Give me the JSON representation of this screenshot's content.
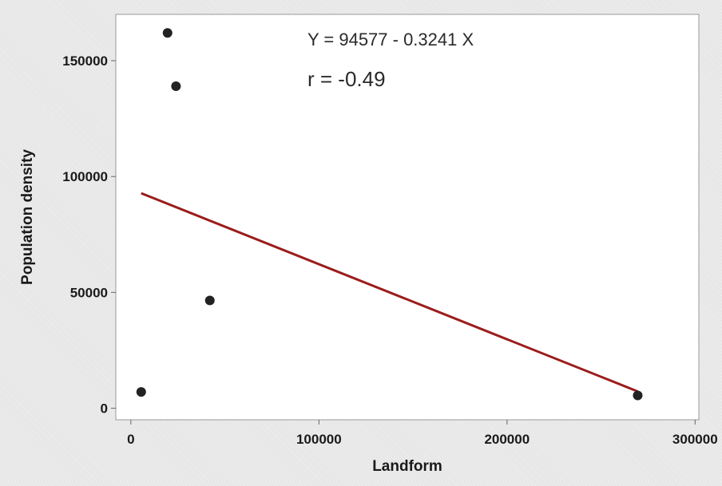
{
  "chart_data": {
    "type": "scatter",
    "title": "",
    "xlabel": "Landform",
    "ylabel": "Population density",
    "xlim": [
      -8000,
      302000
    ],
    "ylim": [
      -5000,
      170000
    ],
    "x_ticks": [
      0,
      100000,
      200000,
      300000
    ],
    "y_ticks": [
      0,
      50000,
      100000,
      150000
    ],
    "x_tick_labels": [
      "0",
      "100000",
      "200000",
      "300000"
    ],
    "y_tick_labels": [
      "0",
      "50000",
      "100000",
      "150000"
    ],
    "points": [
      {
        "x": 5500,
        "y": 7000
      },
      {
        "x": 19500,
        "y": 162000
      },
      {
        "x": 24000,
        "y": 139000
      },
      {
        "x": 42000,
        "y": 46500
      },
      {
        "x": 269500,
        "y": 5500
      }
    ],
    "fit_line": {
      "intercept": 94577,
      "slope": -0.3241,
      "x_range": [
        5500,
        269500
      ]
    },
    "annotations": [
      "Y = 94577 - 0.3241 X",
      "r = -0.49"
    ],
    "grid": false,
    "colors": {
      "points": "#222222",
      "fit_line": "#9b1c1c",
      "plot_bg": "#ffffff",
      "frame": "#999999"
    }
  }
}
